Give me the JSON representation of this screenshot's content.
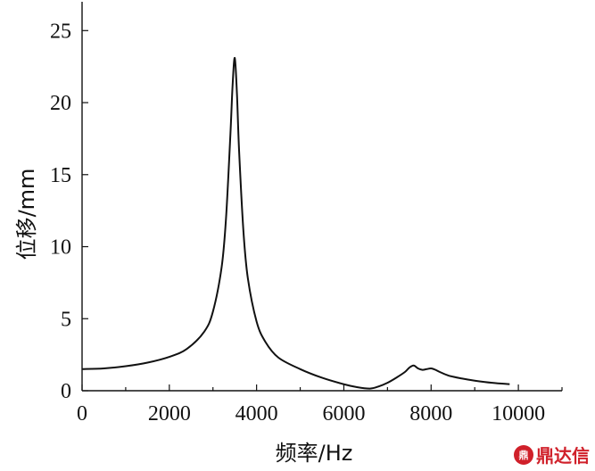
{
  "chart_data": {
    "type": "line",
    "title": "",
    "xlabel": "频率/Hz",
    "ylabel": "位移/mm",
    "xlim": [
      0,
      11000
    ],
    "ylim": [
      0,
      27
    ],
    "x_ticks": [
      0,
      2000,
      4000,
      6000,
      8000,
      10000
    ],
    "x_minor_ticks": [
      1000,
      3000,
      5000,
      7000,
      9000,
      11000
    ],
    "y_ticks": [
      0,
      5,
      10,
      15,
      20,
      25
    ],
    "grid": false,
    "series": [
      {
        "color": "#111111",
        "x": [
          0,
          500,
          1000,
          1500,
          2000,
          2400,
          2800,
          3000,
          3200,
          3300,
          3400,
          3450,
          3500,
          3550,
          3600,
          3700,
          3800,
          4000,
          4200,
          4500,
          5000,
          5500,
          6000,
          6300,
          6600,
          6800,
          7000,
          7200,
          7400,
          7500,
          7600,
          7700,
          7800,
          7900,
          8000,
          8100,
          8200,
          8400,
          8700,
          9000,
          9400,
          9800
        ],
        "y": [
          1.5,
          1.55,
          1.7,
          1.95,
          2.35,
          2.9,
          4.1,
          5.5,
          8.6,
          12.0,
          17.8,
          21.2,
          23.1,
          20.6,
          16.6,
          11.0,
          7.8,
          4.8,
          3.4,
          2.3,
          1.5,
          0.9,
          0.45,
          0.25,
          0.15,
          0.3,
          0.55,
          0.9,
          1.3,
          1.6,
          1.75,
          1.55,
          1.45,
          1.5,
          1.55,
          1.45,
          1.3,
          1.05,
          0.85,
          0.7,
          0.55,
          0.45
        ]
      }
    ]
  },
  "watermark": {
    "logo_text": "鼎",
    "text": "鼎达信"
  }
}
